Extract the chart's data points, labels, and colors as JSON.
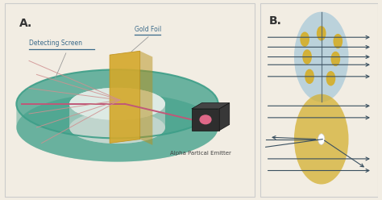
{
  "bg_color": "#f2ede3",
  "teal_outer_color": "#3d9e88",
  "teal_outer_alpha": 0.75,
  "teal_inner_color": "#5ab8a0",
  "teal_inner_alpha": 0.35,
  "teal_rim_color": "#5ab8a0",
  "gold_foil_color": "#d4a82a",
  "gold_foil_edge": "#c09018",
  "emitter_color": "#2e2e2e",
  "emitter_dot_color": "#e06888",
  "beam_color": "#c05878",
  "scattered_color": "#d09090",
  "screen_label": "Detecting Screen",
  "foil_label": "Gold Foil",
  "emitter_label": "Alpha Partical Emitter",
  "section_a_label": "A.",
  "section_b_label": "B.",
  "label_color": "#3a6a8a",
  "thomson_circle_color": "#9ec4d8",
  "thomson_circle_alpha": 0.65,
  "thomson_dots_color": "#d4b030",
  "rutherford_circle_color": "#d4b030",
  "rutherford_circle_alpha": 0.75,
  "nucleus_color": "#ffffff",
  "arrow_color": "#3a5060"
}
